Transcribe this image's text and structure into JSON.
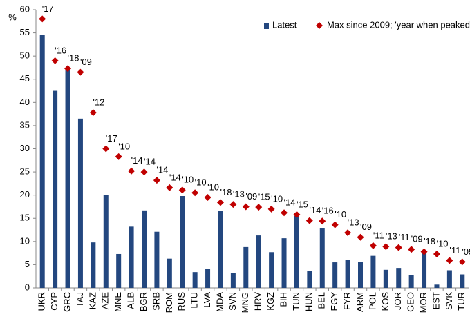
{
  "chart_data": {
    "type": "bar",
    "y_label": "%",
    "categories": [
      "UKR",
      "CYP",
      "GRC",
      "TAJ",
      "KAZ",
      "AZE",
      "MNE",
      "ALB",
      "BGR",
      "SRB",
      "ROM",
      "RUS",
      "LTU",
      "LVA",
      "MDA",
      "SVN",
      "MNG",
      "HRV",
      "KGZ",
      "BIH",
      "TUN",
      "HUN",
      "BEL",
      "EGY",
      "FYR",
      "ARM",
      "POL",
      "KOS",
      "JOR",
      "GEO",
      "MOR",
      "EST",
      "SVK",
      "TUR"
    ],
    "series": [
      {
        "name": "Latest",
        "color": "#23477f",
        "marker": "bar",
        "values": [
          54.5,
          42.5,
          47,
          36.5,
          9.8,
          20,
          7.3,
          13.2,
          16.7,
          12.1,
          6.3,
          19.8,
          3.4,
          4.1,
          16.6,
          3.2,
          8.8,
          11.3,
          7.7,
          10.7,
          15.5,
          3.7,
          12.8,
          5.5,
          6.1,
          5.6,
          6.9,
          3.9,
          4.3,
          2.8,
          7.5,
          0.7,
          3.8,
          2.9
        ]
      },
      {
        "name": "Max since 2009; 'year when peaked",
        "color": "#c00000",
        "marker": "diamond",
        "values": [
          58,
          49,
          47.3,
          46.5,
          37.8,
          30,
          28.3,
          25.2,
          25,
          23.2,
          21.6,
          21.1,
          20.5,
          19.5,
          18.4,
          18,
          17.5,
          17.4,
          17,
          16.2,
          15.8,
          14.5,
          14.4,
          13.6,
          11.9,
          10.9,
          9.1,
          8.9,
          8.7,
          8.3,
          7.8,
          7.3,
          5.9,
          5.6
        ],
        "year_labels": [
          "'17",
          "'16",
          "'18",
          "'09",
          "'12",
          "'17",
          "'10",
          "'14",
          "'14",
          "'14",
          "'14",
          "'10",
          "'10",
          "'10",
          "'18",
          "'13",
          "'09",
          "'15",
          "'10",
          "'14",
          "'15",
          "'14",
          "'16",
          "'10",
          "'13",
          "'09",
          "'11",
          "'13",
          "'11",
          "'09",
          "'18",
          "'10",
          "'11",
          "'09"
        ]
      }
    ],
    "ylim": [
      0,
      60
    ],
    "yticks": [
      0,
      5,
      10,
      15,
      20,
      25,
      30,
      35,
      40,
      45,
      50,
      55,
      60
    ],
    "grid": false,
    "legend": "top-right"
  }
}
